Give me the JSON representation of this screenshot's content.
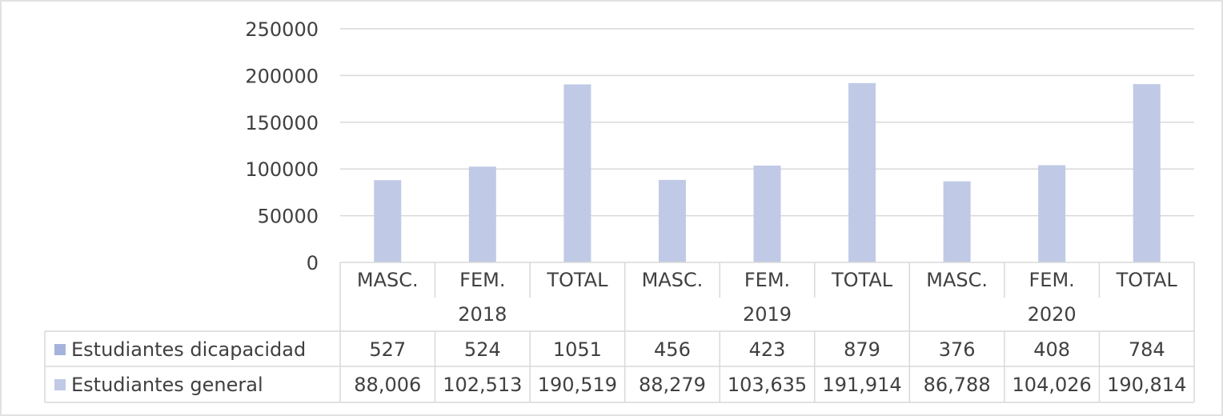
{
  "chart_data": {
    "type": "bar",
    "years": [
      "2018",
      "2019",
      "2020"
    ],
    "categories": [
      "MASC.",
      "FEM.",
      "TOTAL",
      "MASC.",
      "FEM.",
      "TOTAL",
      "MASC.",
      "FEM.",
      "TOTAL"
    ],
    "yticks": [
      "0",
      "50000",
      "100000",
      "150000",
      "200000",
      "250000"
    ],
    "ylim": [
      0,
      250000
    ],
    "grid": true,
    "legend": "data-table",
    "series": [
      {
        "name": "Estudiantes dicapacidad",
        "color": "#a5b3dc",
        "values": [
          527,
          524,
          1051,
          456,
          423,
          879,
          376,
          408,
          784
        ],
        "labels": [
          "527",
          "524",
          "1051",
          "456",
          "423",
          "879",
          "376",
          "408",
          "784"
        ]
      },
      {
        "name": "Estudiantes general",
        "color": "#c0cae6",
        "values": [
          88006,
          102513,
          190519,
          88279,
          103635,
          191914,
          86788,
          104026,
          190814
        ],
        "labels": [
          "88,006",
          "102,513",
          "190,519",
          "88,279",
          "103,635",
          "191,914",
          "86,788",
          "104,026",
          "190,814"
        ]
      }
    ]
  }
}
